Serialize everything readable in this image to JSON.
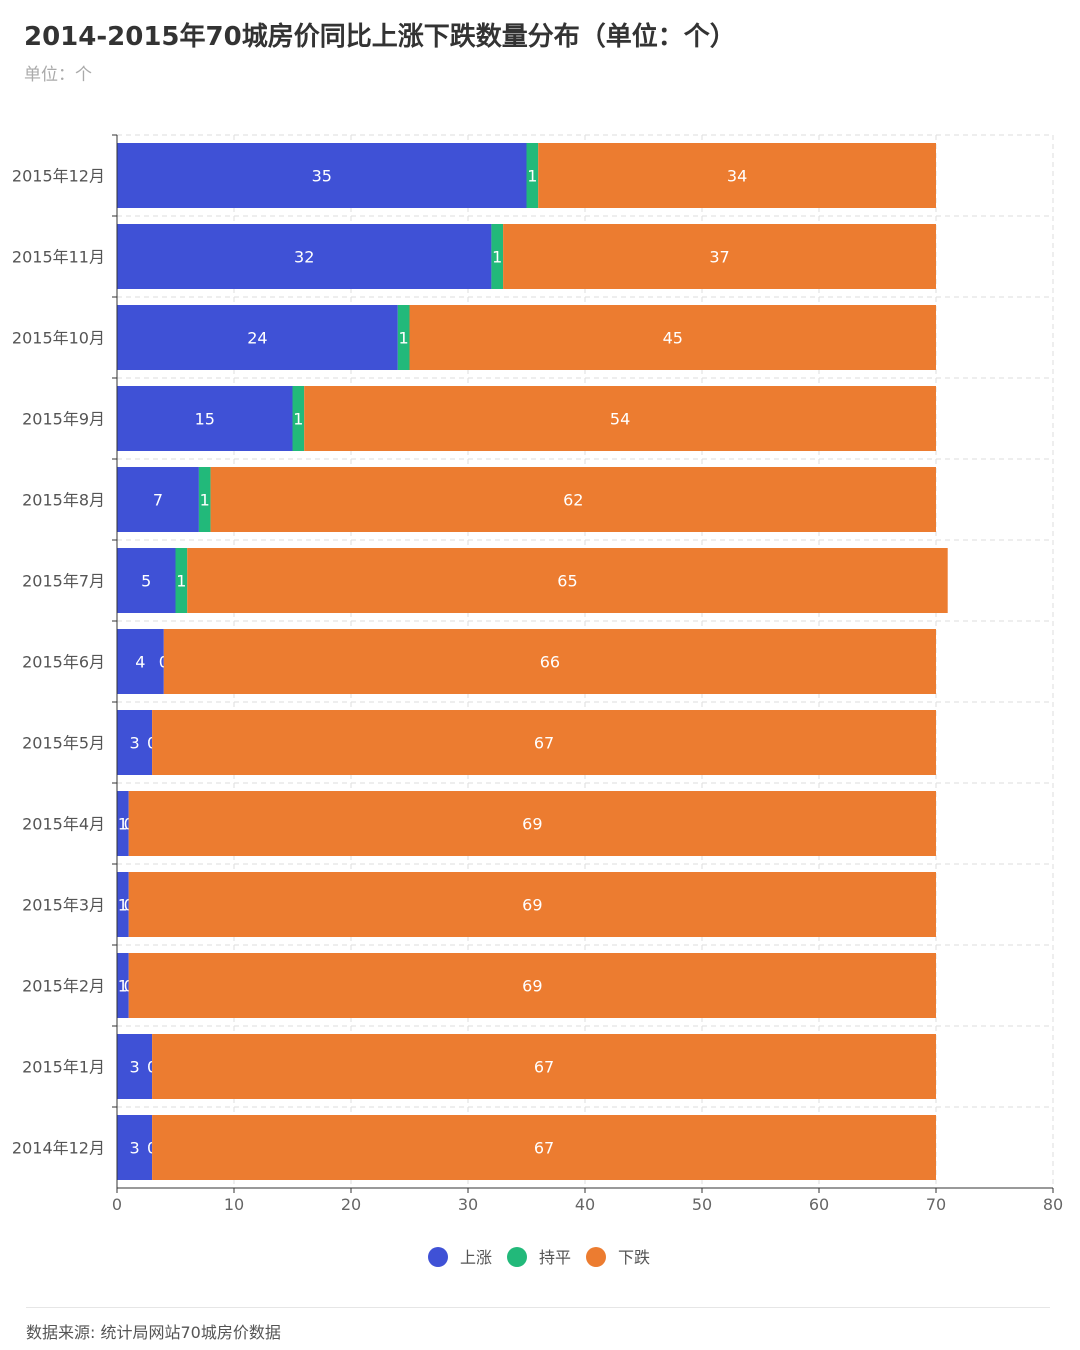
{
  "title": "2014-2015年70城房价同比上涨下跌数量分布（单位：个）",
  "subtitle": "单位：个",
  "source": "数据来源: 统计局网站70城房价数据",
  "chart_data": {
    "type": "bar",
    "orientation": "horizontal",
    "stacked": true,
    "categories": [
      "2015年12月",
      "2015年11月",
      "2015年10月",
      "2015年9月",
      "2015年8月",
      "2015年7月",
      "2015年6月",
      "2015年5月",
      "2015年4月",
      "2015年3月",
      "2015年2月",
      "2015年1月",
      "2014年12月"
    ],
    "series": [
      {
        "name": "上涨",
        "color": "#3f51d6",
        "values": [
          35,
          32,
          24,
          15,
          7,
          5,
          4,
          3,
          1,
          1,
          1,
          3,
          3
        ]
      },
      {
        "name": "持平",
        "color": "#22b97a",
        "values": [
          1,
          1,
          1,
          1,
          1,
          1,
          0,
          0,
          0,
          0,
          0,
          0,
          0
        ]
      },
      {
        "name": "下跌",
        "color": "#ec7c30",
        "values": [
          34,
          37,
          45,
          54,
          62,
          65,
          66,
          67,
          69,
          69,
          69,
          67,
          67
        ]
      }
    ],
    "xlim": [
      0,
      80
    ],
    "xticks": [
      0,
      10,
      20,
      30,
      40,
      50,
      60,
      70,
      80
    ],
    "grid": true,
    "legend": "bottom-center",
    "data_labels": true
  }
}
